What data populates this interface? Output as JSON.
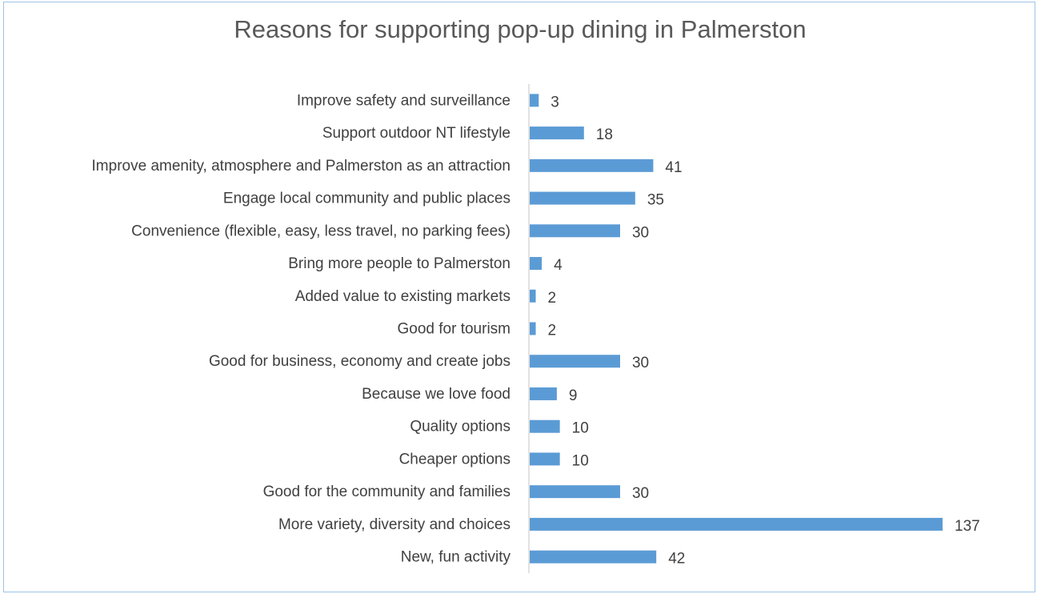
{
  "chart_data": {
    "type": "bar",
    "orientation": "horizontal",
    "title": "Reasons for supporting pop-up dining in Palmerston",
    "xlabel": "",
    "ylabel": "",
    "categories": [
      "Improve safety and surveillance",
      "Support outdoor NT lifestyle",
      "Improve amenity, atmosphere and Palmerston as an attraction",
      "Engage local community and public places",
      "Convenience (flexible, easy, less travel, no parking fees)",
      "Bring more people to Palmerston",
      "Added value to existing markets",
      "Good for tourism",
      "Good for business, economy and create jobs",
      "Because we love food",
      "Quality options",
      "Cheaper options",
      "Good for the community and families",
      "More variety, diversity and choices",
      "New, fun activity"
    ],
    "values": [
      3,
      18,
      41,
      35,
      30,
      4,
      2,
      2,
      30,
      9,
      10,
      10,
      30,
      137,
      42
    ],
    "xlim": [
      0,
      137
    ],
    "grid": false,
    "legend": "none",
    "data_labels": true,
    "colors": {
      "bar": "#5b9bd5",
      "axis": "#d9d9d9",
      "text": "#404040",
      "title": "#595959",
      "border": "#9dc3e6"
    }
  }
}
